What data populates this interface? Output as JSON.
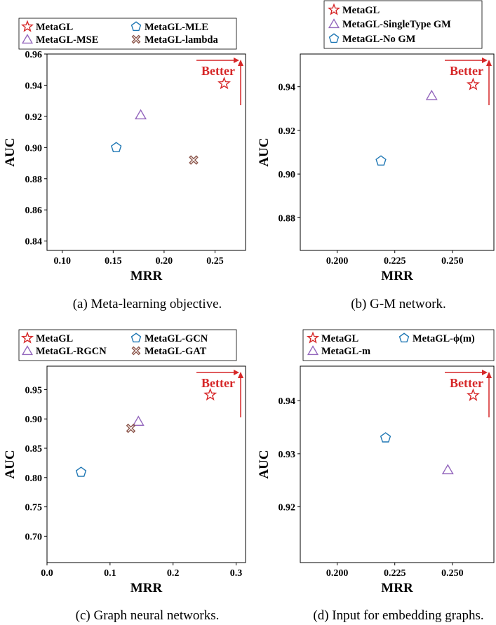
{
  "colors": {
    "MetaGL": "#d62728",
    "triangle": "#9467bd",
    "pentagon": "#1f77b4",
    "cross": "#8c564b",
    "better": "#d62728"
  },
  "annotation": "Better",
  "chart_data": [
    {
      "type": "scatter",
      "caption": "(a) Meta-learning objective.",
      "xlabel": "MRR",
      "ylabel": "AUC",
      "xlim": [
        0.085,
        0.28
      ],
      "ylim": [
        0.834,
        0.96
      ],
      "xticks": [
        0.1,
        0.15,
        0.2,
        0.25
      ],
      "xtick_labels": [
        "0.10",
        "0.15",
        "0.20",
        "0.25"
      ],
      "yticks": [
        0.84,
        0.86,
        0.88,
        0.9,
        0.92,
        0.94,
        0.96
      ],
      "ytick_labels": [
        "0.84",
        "0.86",
        "0.88",
        "0.90",
        "0.92",
        "0.94",
        "0.96"
      ],
      "legend": {
        "columns": 2,
        "placement": "above"
      },
      "points": [
        {
          "name": "MetaGL",
          "marker": "star",
          "x": 0.259,
          "y": 0.941
        },
        {
          "name": "MetaGL-MSE",
          "marker": "triangle",
          "x": 0.177,
          "y": 0.921
        },
        {
          "name": "MetaGL-MLE",
          "marker": "pentagon",
          "x": 0.153,
          "y": 0.9
        },
        {
          "name": "MetaGL-lambda",
          "marker": "cross",
          "x": 0.229,
          "y": 0.892
        }
      ],
      "legend_order": [
        0,
        2,
        1,
        3
      ]
    },
    {
      "type": "scatter",
      "caption": "(b) G-M network.",
      "xlabel": "MRR",
      "ylabel": "AUC",
      "xlim": [
        0.184,
        0.268
      ],
      "ylim": [
        0.865,
        0.955
      ],
      "xticks": [
        0.2,
        0.225,
        0.25
      ],
      "xtick_labels": [
        "0.200",
        "0.225",
        "0.250"
      ],
      "yticks": [
        0.88,
        0.9,
        0.92,
        0.94
      ],
      "ytick_labels": [
        "0.88",
        "0.90",
        "0.92",
        "0.94"
      ],
      "legend": {
        "columns": 1,
        "placement": "above"
      },
      "points": [
        {
          "name": "MetaGL",
          "marker": "star",
          "x": 0.259,
          "y": 0.941
        },
        {
          "name": "MetaGL-SingleType GM",
          "marker": "triangle",
          "x": 0.241,
          "y": 0.936
        },
        {
          "name": "MetaGL-No GM",
          "marker": "pentagon",
          "x": 0.219,
          "y": 0.906
        }
      ],
      "legend_order": [
        0,
        1,
        2
      ]
    },
    {
      "type": "scatter",
      "caption": "(c) Graph neural networks.",
      "xlabel": "MRR",
      "ylabel": "AUC",
      "xlim": [
        0.0,
        0.315
      ],
      "ylim": [
        0.655,
        0.99
      ],
      "xticks": [
        0.0,
        0.1,
        0.2,
        0.3
      ],
      "xtick_labels": [
        "0.0",
        "0.1",
        "0.2",
        "0.3"
      ],
      "yticks": [
        0.7,
        0.75,
        0.8,
        0.85,
        0.9,
        0.95
      ],
      "ytick_labels": [
        "0.70",
        "0.75",
        "0.80",
        "0.85",
        "0.90",
        "0.95"
      ],
      "legend": {
        "columns": 2,
        "placement": "above"
      },
      "points": [
        {
          "name": "MetaGL",
          "marker": "star",
          "x": 0.259,
          "y": 0.941
        },
        {
          "name": "MetaGL-RGCN",
          "marker": "triangle",
          "x": 0.145,
          "y": 0.896
        },
        {
          "name": "MetaGL-GCN",
          "marker": "pentagon",
          "x": 0.054,
          "y": 0.809
        },
        {
          "name": "MetaGL-GAT",
          "marker": "cross",
          "x": 0.133,
          "y": 0.884
        }
      ],
      "legend_order": [
        0,
        2,
        1,
        3
      ]
    },
    {
      "type": "scatter",
      "caption": "(d) Input for embedding graphs.",
      "xlabel": "MRR",
      "ylabel": "AUC",
      "xlim": [
        0.184,
        0.268
      ],
      "ylim": [
        0.9095,
        0.9465
      ],
      "xticks": [
        0.2,
        0.225,
        0.25
      ],
      "xtick_labels": [
        "0.200",
        "0.225",
        "0.250"
      ],
      "yticks": [
        0.92,
        0.93,
        0.94
      ],
      "ytick_labels": [
        "0.92",
        "0.93",
        "0.94"
      ],
      "legend": {
        "columns": 2,
        "placement": "above"
      },
      "points": [
        {
          "name": "MetaGL",
          "marker": "star",
          "x": 0.259,
          "y": 0.941
        },
        {
          "name": "MetaGL-m",
          "marker": "triangle",
          "x": 0.248,
          "y": 0.927
        },
        {
          "name": "MetaGL-ϕ(m)",
          "marker": "pentagon",
          "x": 0.221,
          "y": 0.933
        }
      ],
      "legend_order": [
        0,
        2,
        1
      ]
    }
  ]
}
